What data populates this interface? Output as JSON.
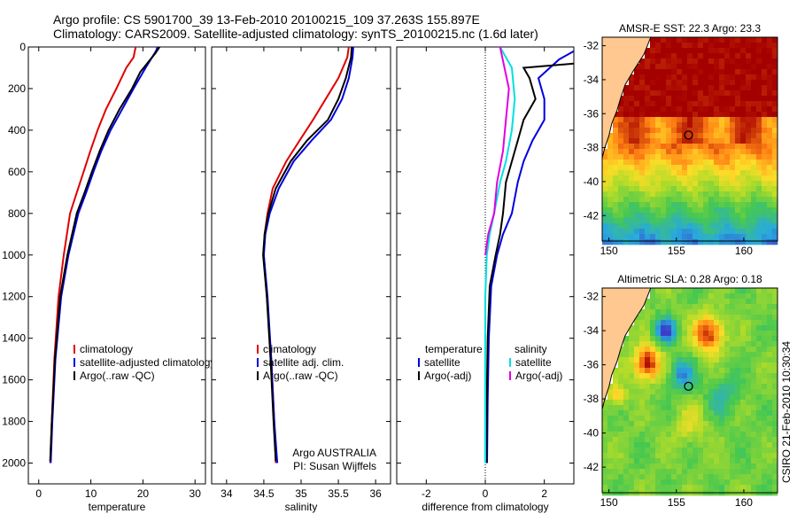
{
  "header": {
    "line1": "Argo profile: CS 5901700_39 13-Feb-2010 20100215_109 37.263S 155.897E",
    "line2": "Climatology: CARS2009. Satellite-adjusted climatology: synTS_20100215.nc (1.6d later)"
  },
  "colors": {
    "climatology": "#e00000",
    "satellite": "#0000e0",
    "argo": "#000000",
    "satellite_salt": "#00e0e0",
    "argo_salt": "#e000e0",
    "land": "#ffc890"
  },
  "chart_data": [
    {
      "type": "line",
      "id": "temperature",
      "xlabel": "temperature",
      "ylabel": "",
      "xlim": [
        -2,
        32
      ],
      "ylim": [
        2100,
        0
      ],
      "xticks": [
        0,
        10,
        20,
        30
      ],
      "yticks": [
        0,
        200,
        400,
        600,
        800,
        1000,
        1200,
        1400,
        1600,
        1800,
        2000
      ],
      "legend": [
        "climatology",
        "satellite-adjusted climatology",
        "Argo(..raw -QC)"
      ],
      "series": [
        {
          "name": "climatology",
          "color": "#e00000",
          "x": [
            18.6,
            18.2,
            16.8,
            14.9,
            12.9,
            11.3,
            9.9,
            8.6,
            7.3,
            6.0,
            4.8,
            3.8,
            3.0,
            2.5,
            2.2
          ],
          "y": [
            0,
            50,
            100,
            200,
            300,
            400,
            500,
            600,
            700,
            800,
            1000,
            1200,
            1500,
            1800,
            2000
          ]
        },
        {
          "name": "satellite-adjusted climatology",
          "color": "#0000e0",
          "x": [
            22.8,
            22.5,
            20.5,
            18.2,
            16.0,
            13.8,
            12.0,
            10.5,
            9.1,
            7.6,
            5.7,
            4.3,
            3.2,
            2.6,
            2.3
          ],
          "y": [
            0,
            20,
            100,
            200,
            300,
            400,
            500,
            600,
            700,
            800,
            1000,
            1200,
            1500,
            1800,
            2000
          ]
        },
        {
          "name": "Argo(..raw -QC)",
          "color": "#000000",
          "x": [
            23.2,
            22.4,
            19.5,
            17.9,
            15.5,
            13.4,
            11.7,
            10.2,
            8.8,
            7.3,
            5.5,
            4.1,
            3.1,
            2.5,
            2.2
          ],
          "y": [
            0,
            30,
            120,
            200,
            300,
            400,
            500,
            600,
            700,
            800,
            1000,
            1200,
            1500,
            1800,
            1990
          ]
        }
      ]
    },
    {
      "type": "line",
      "id": "salinity",
      "xlabel": "salinity",
      "xlim": [
        33.8,
        36.2
      ],
      "ylim": [
        2100,
        0
      ],
      "xticks": [
        34,
        34.5,
        35,
        35.5,
        36
      ],
      "legend": [
        "climatology",
        "satellite adj. clim.",
        "Argo(..raw -QC)"
      ],
      "annotation": [
        "Argo AUSTRALIA",
        "PI: Susan Wijffels"
      ],
      "series": [
        {
          "name": "climatology",
          "color": "#e00000",
          "x": [
            35.64,
            35.62,
            35.5,
            35.33,
            35.16,
            34.98,
            34.8,
            34.62,
            34.55,
            34.51,
            34.5,
            34.54,
            34.6,
            34.64,
            34.66
          ],
          "y": [
            0,
            50,
            150,
            250,
            350,
            450,
            550,
            680,
            800,
            900,
            1000,
            1200,
            1500,
            1800,
            2000
          ]
        },
        {
          "name": "satellite adj. clim.",
          "color": "#0000e0",
          "x": [
            35.7,
            35.69,
            35.64,
            35.55,
            35.4,
            35.14,
            34.9,
            34.7,
            34.58,
            34.52,
            34.5,
            34.55,
            34.6,
            34.64,
            34.68
          ],
          "y": [
            0,
            50,
            150,
            250,
            350,
            450,
            550,
            680,
            800,
            900,
            1000,
            1200,
            1500,
            1800,
            2000
          ]
        },
        {
          "name": "Argo(..raw -QC)",
          "color": "#000000",
          "x": [
            35.68,
            35.67,
            35.6,
            35.5,
            35.36,
            35.08,
            34.86,
            34.66,
            34.56,
            34.51,
            34.49,
            34.54,
            34.59,
            34.63,
            34.66
          ],
          "y": [
            0,
            50,
            150,
            250,
            350,
            450,
            550,
            680,
            800,
            900,
            1000,
            1200,
            1500,
            1800,
            1990
          ]
        }
      ]
    },
    {
      "type": "line",
      "id": "difference",
      "xlabel": "difference from climatology",
      "xlim": [
        -3,
        3
      ],
      "ylim": [
        2100,
        0
      ],
      "xticks": [
        -2,
        0,
        2
      ],
      "legend_temperature": {
        "title": "temperature",
        "items": [
          "satellite",
          "Argo(-adj)"
        ]
      },
      "legend_salinity": {
        "title": "salinity",
        "items": [
          "satellite",
          "Argo(-adj)"
        ]
      },
      "series": [
        {
          "name": "temperature satellite",
          "color": "#0000e0",
          "x": [
            3.0,
            2.5,
            1.8,
            2.0,
            2.0,
            1.6,
            1.3,
            1.1,
            0.9,
            0.6,
            0.4,
            0.2,
            0.12,
            0.08,
            0.06
          ],
          "y": [
            20,
            60,
            150,
            250,
            350,
            450,
            550,
            650,
            800,
            900,
            1000,
            1150,
            1400,
            1700,
            2000
          ]
        },
        {
          "name": "temperature Argo(-adj)",
          "color": "#000000",
          "x": [
            3.0,
            1.3,
            1.5,
            1.7,
            1.3,
            1.1,
            0.9,
            0.7,
            0.6,
            0.5,
            0.35,
            0.15,
            0.08,
            0.05,
            0.04
          ],
          "y": [
            80,
            100,
            150,
            250,
            350,
            450,
            550,
            650,
            800,
            900,
            1000,
            1150,
            1400,
            1700,
            2000
          ]
        },
        {
          "name": "salinity satellite",
          "color": "#00e0e0",
          "x": [
            0.5,
            0.9,
            1.0,
            0.9,
            0.7,
            0.5,
            0.3,
            0.15,
            0.05,
            0.0,
            0.0,
            0.0
          ],
          "y": [
            0,
            100,
            250,
            400,
            550,
            650,
            800,
            900,
            1000,
            1200,
            1500,
            2000
          ]
        },
        {
          "name": "salinity Argo(-adj)",
          "color": "#e000e0",
          "x": [
            0.5,
            0.8,
            0.7,
            0.6,
            0.4,
            0.3,
            0.1,
            0.0
          ],
          "y": [
            0,
            200,
            350,
            500,
            650,
            800,
            900,
            1000
          ]
        }
      ]
    },
    {
      "type": "heatmap",
      "id": "sst-map",
      "title": "AMSR-E SST: 22.3 Argo: 23.3",
      "xticks": [
        150,
        155,
        160
      ],
      "yticks": [
        -32,
        -34,
        -36,
        -38,
        -40,
        -42
      ],
      "xlim": [
        149.5,
        162.5
      ],
      "ylim": [
        -43.5,
        -31.5
      ],
      "marker": {
        "lon": 155.9,
        "lat": -37.26
      }
    },
    {
      "type": "heatmap",
      "id": "sla-map",
      "title": "Altimetric SLA: 0.28 Argo: 0.18",
      "xticks": [
        150,
        155,
        160
      ],
      "yticks": [
        -32,
        -34,
        -36,
        -38,
        -40,
        -42
      ],
      "xlim": [
        149.5,
        162.5
      ],
      "ylim": [
        -43.5,
        -31.5
      ],
      "marker": {
        "lon": 155.9,
        "lat": -37.26
      }
    }
  ],
  "footer": {
    "credit": "CSIRO 21-Feb-2010 10:30:34"
  }
}
